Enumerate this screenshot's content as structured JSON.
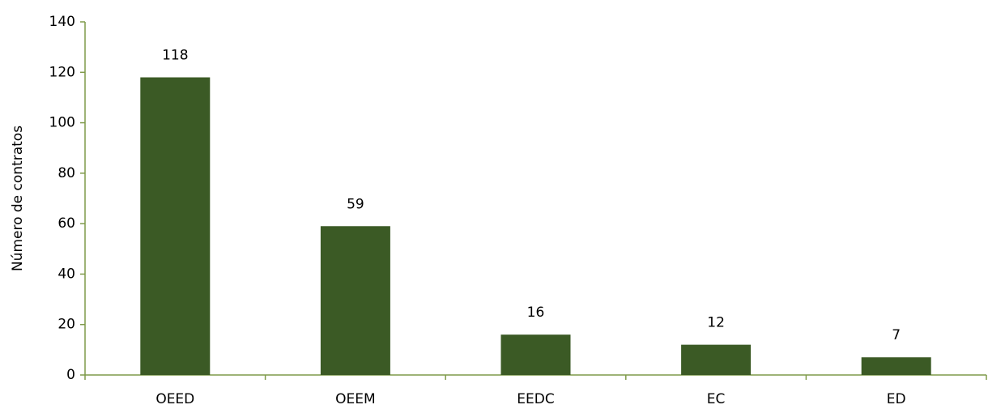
{
  "chart_data": {
    "type": "bar",
    "y_label": "Número de contratos",
    "categories": [
      "OEED",
      "OEEM",
      "EEDC",
      "EC",
      "ED"
    ],
    "values": [
      118,
      59,
      16,
      12,
      7
    ],
    "color": "#3b5a25",
    "ylim": [
      0,
      140
    ],
    "yticks": [
      0,
      20,
      40,
      60,
      80,
      100,
      120,
      140
    ],
    "grid": false
  }
}
